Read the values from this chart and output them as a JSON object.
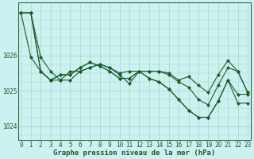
{
  "background_color": "#cdf0f0",
  "grid_color": "#a0d8c8",
  "line_color": "#1a5c2a",
  "marker": "D",
  "markersize": 2.0,
  "linewidth": 0.8,
  "xlabel": "Graphe pression niveau de la mer (hPa)",
  "xlabel_fontsize": 6.5,
  "tick_fontsize": 5.5,
  "ylim": [
    1023.6,
    1027.5
  ],
  "yticks": [
    1024,
    1025,
    1026
  ],
  "xlim": [
    -0.3,
    23.3
  ],
  "xticks": [
    0,
    1,
    2,
    3,
    4,
    5,
    6,
    7,
    8,
    9,
    10,
    11,
    12,
    13,
    14,
    15,
    16,
    17,
    18,
    19,
    20,
    21,
    22,
    23
  ],
  "series": [
    [
      1027.2,
      1027.2,
      1025.95,
      1025.55,
      1025.3,
      1025.3,
      1025.55,
      1025.65,
      1025.75,
      1025.65,
      1025.5,
      1025.55,
      1025.55,
      1025.55,
      1025.55,
      1025.5,
      1025.3,
      1025.4,
      1025.15,
      1024.95,
      1025.45,
      1025.85,
      1025.55,
      1024.95
    ],
    [
      1027.2,
      1025.95,
      1025.55,
      1025.3,
      1025.3,
      1025.55,
      1025.55,
      1025.65,
      1025.75,
      1025.65,
      1025.45,
      1025.2,
      1025.55,
      1025.55,
      1025.55,
      1025.45,
      1025.25,
      1025.1,
      1024.75,
      1024.6,
      1025.15,
      1025.65,
      1025.55,
      1024.95
    ],
    [
      1027.2,
      1027.2,
      1025.55,
      1025.3,
      1025.45,
      1025.45,
      1025.65,
      1025.8,
      1025.7,
      1025.55,
      1025.35,
      1025.35,
      1025.55,
      1025.35,
      1025.25,
      1025.05,
      1024.75,
      1024.45,
      1024.25,
      1024.25,
      1024.7,
      1025.3,
      1024.9,
      1024.9
    ],
    [
      1027.2,
      1027.2,
      1025.55,
      1025.3,
      1025.45,
      1025.45,
      1025.65,
      1025.8,
      1025.7,
      1025.55,
      1025.35,
      1025.35,
      1025.55,
      1025.35,
      1025.25,
      1025.05,
      1024.75,
      1024.45,
      1024.25,
      1024.25,
      1024.7,
      1025.3,
      1024.65,
      1024.65
    ]
  ]
}
